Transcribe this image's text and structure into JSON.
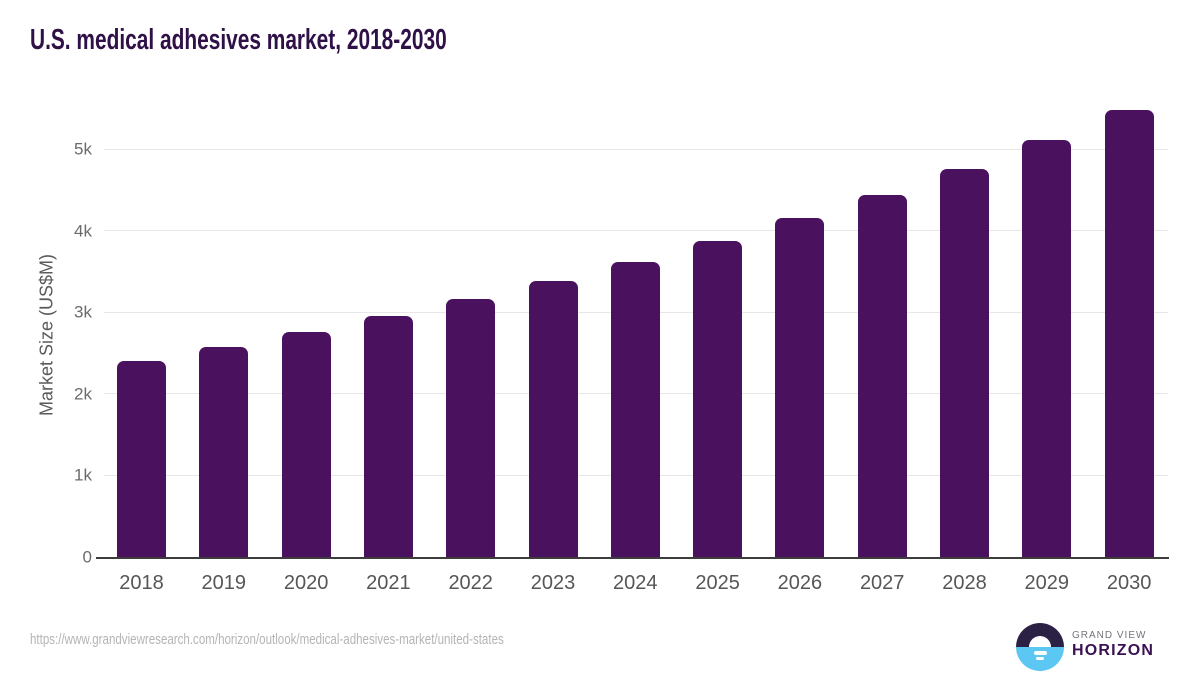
{
  "title": "U.S. medical adhesives market, 2018-2030",
  "source_url": "https://www.grandviewresearch.com/horizon/outlook/medical-adhesives-market/united-states",
  "logo": {
    "top_text": "GRAND VIEW",
    "bottom_text": "HORIZON"
  },
  "colors": {
    "bar": "#4a115e",
    "title_text": "#2f1047",
    "tick_text": "#6b6b6b",
    "x_tick_text": "#565656",
    "y_axis_label_text": "#5a5a5a",
    "gridline": "#e7e7e7",
    "axis_line": "#3d3d3d",
    "url_text": "#b4b4b4",
    "logo_navy": "#2b2144",
    "logo_blue": "#5bc7f2",
    "logo_horizon_text": "#3a1153",
    "logo_grandview_text": "#73737e"
  },
  "chart_data": {
    "type": "bar",
    "title": "U.S. medical adhesives market, 2018-2030",
    "categories": [
      "2018",
      "2019",
      "2020",
      "2021",
      "2022",
      "2023",
      "2024",
      "2025",
      "2026",
      "2027",
      "2028",
      "2029",
      "2030"
    ],
    "values": [
      2400,
      2570,
      2760,
      2950,
      3160,
      3380,
      3610,
      3870,
      4150,
      4440,
      4760,
      5110,
      5480
    ],
    "xlabel": "",
    "ylabel": "Market Size (US$M)",
    "ylim": [
      0,
      5600
    ],
    "ytick_values": [
      0,
      1000,
      2000,
      3000,
      4000,
      5000
    ],
    "ytick_labels": [
      "0",
      "1k",
      "2k",
      "3k",
      "4k",
      "5k"
    ],
    "grid": "horizontal",
    "legend": "none",
    "bar_color": "#4a115e"
  }
}
